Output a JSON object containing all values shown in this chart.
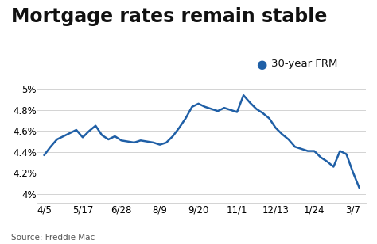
{
  "title": "Mortgage rates remain stable",
  "legend_label": "30-year FRM",
  "source": "Source: Freddie Mac",
  "line_color": "#1f5fa6",
  "background_color": "#ffffff",
  "x_labels": [
    "4/5",
    "5/17",
    "6/28",
    "8/9",
    "9/20",
    "11/1",
    "12/13",
    "1/24",
    "3/7"
  ],
  "x_positions": [
    0,
    6,
    12,
    18,
    24,
    30,
    36,
    42,
    48
  ],
  "y_data_x": [
    0,
    1,
    2,
    3,
    4,
    5,
    6,
    7,
    8,
    9,
    10,
    11,
    12,
    13,
    14,
    15,
    16,
    17,
    18,
    19,
    20,
    21,
    22,
    23,
    24,
    25,
    26,
    27,
    28,
    29,
    30,
    31,
    32,
    33,
    34,
    35,
    36,
    37,
    38,
    39,
    40,
    41,
    42,
    43,
    44,
    45,
    46,
    47,
    48,
    49
  ],
  "y_data": [
    4.37,
    4.45,
    4.52,
    4.55,
    4.58,
    4.61,
    4.54,
    4.6,
    4.65,
    4.56,
    4.52,
    4.55,
    4.51,
    4.5,
    4.49,
    4.51,
    4.5,
    4.49,
    4.47,
    4.49,
    4.55,
    4.63,
    4.72,
    4.83,
    4.86,
    4.83,
    4.81,
    4.79,
    4.82,
    4.8,
    4.78,
    4.94,
    4.87,
    4.81,
    4.77,
    4.72,
    4.63,
    4.57,
    4.52,
    4.45,
    4.43,
    4.41,
    4.41,
    4.35,
    4.31,
    4.26,
    4.41,
    4.38,
    4.21,
    4.06
  ],
  "yticks": [
    4.0,
    4.2,
    4.4,
    4.6,
    4.8,
    5.0
  ],
  "ylim": [
    3.92,
    5.08
  ],
  "xlim": [
    -1,
    50
  ],
  "title_fontsize": 17,
  "tick_fontsize": 8.5,
  "legend_fontsize": 9.5,
  "source_fontsize": 7.5
}
